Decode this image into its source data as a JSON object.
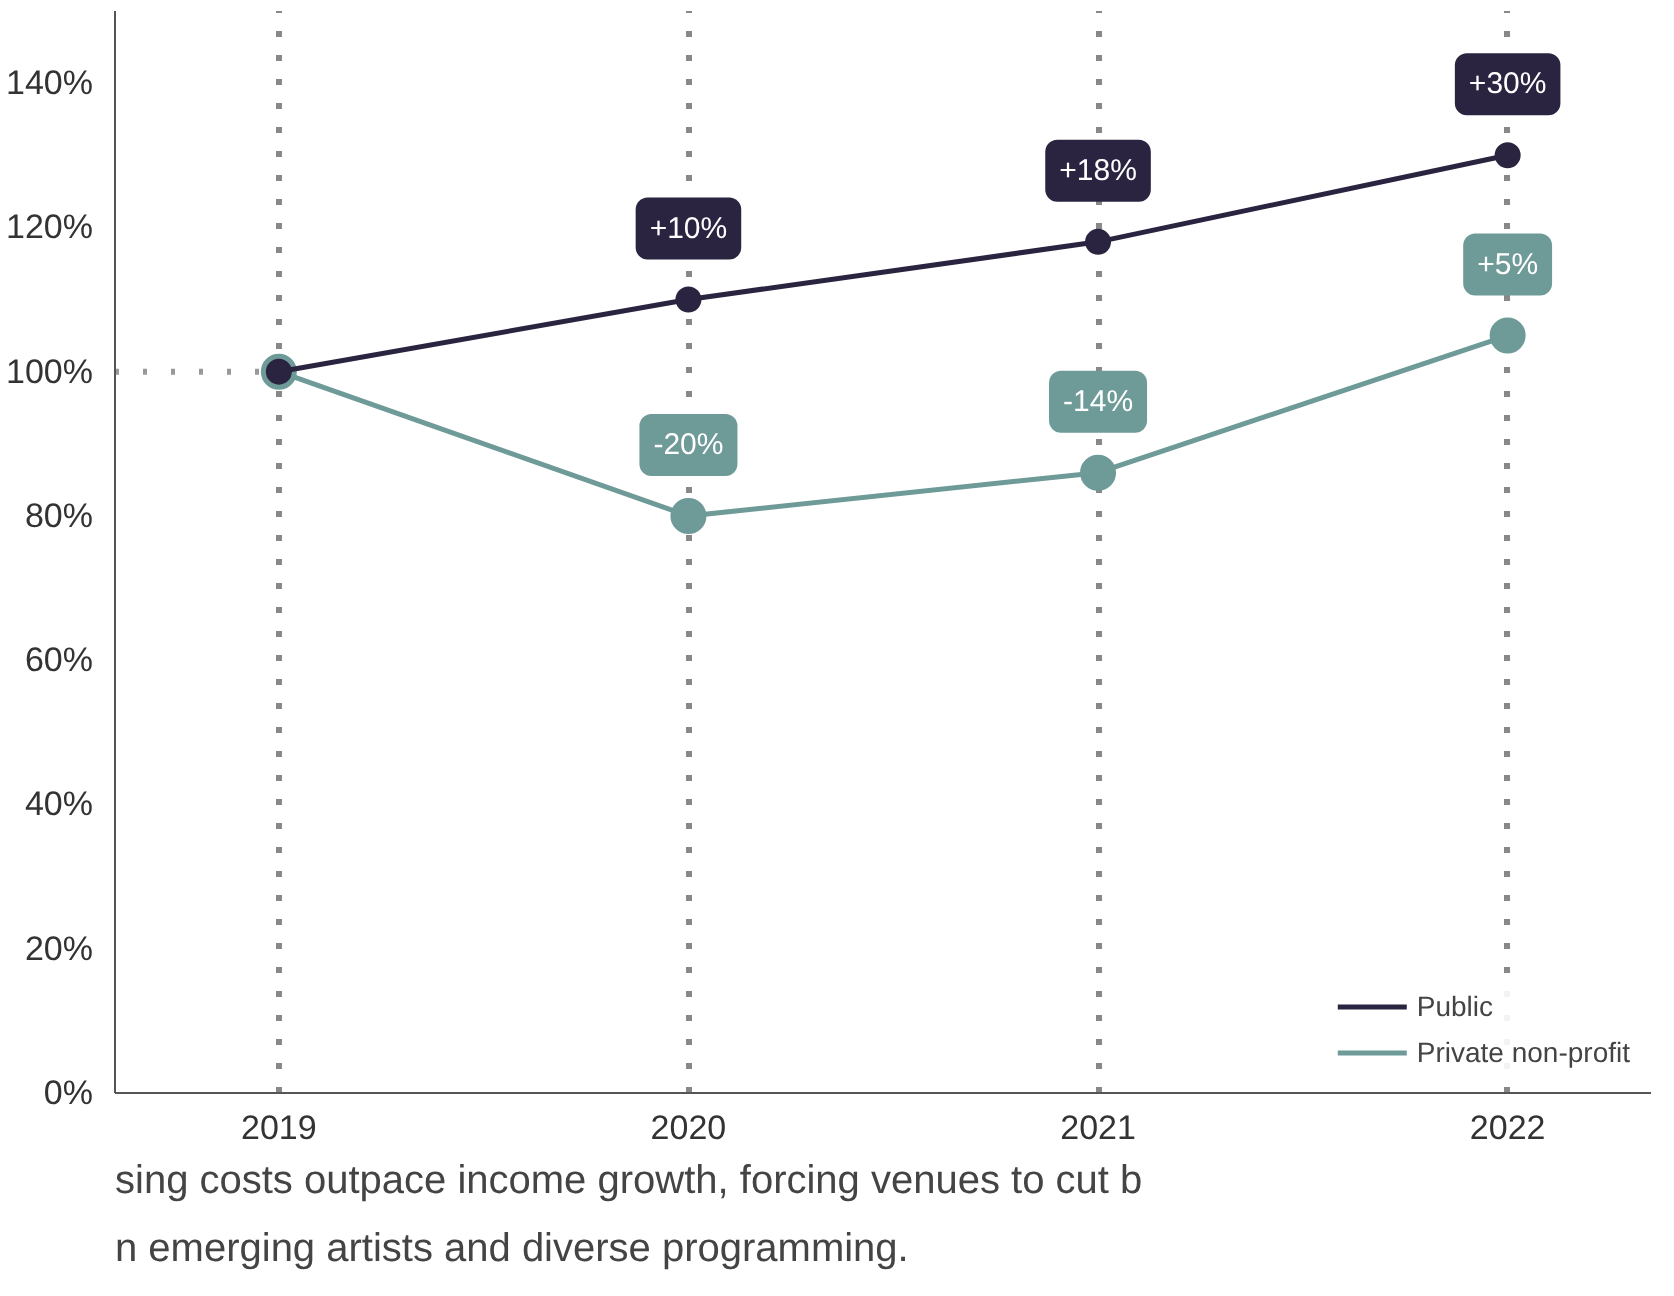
{
  "chart_data": {
    "type": "line",
    "x": [
      2019,
      2020,
      2021,
      2022
    ],
    "series": [
      {
        "name": "Public",
        "color": "#2a2440",
        "values": [
          100,
          110,
          118,
          130
        ]
      },
      {
        "name": "Private non-profit",
        "color": "#6e9a98",
        "values": [
          100,
          80,
          86,
          105
        ]
      }
    ],
    "xlim": [
      2018.6,
      2022.35
    ],
    "xticks": [
      2019,
      2020,
      2021,
      2022
    ],
    "ylim": [
      0,
      150
    ],
    "yticks": [
      {
        "value": 0,
        "label": "0%"
      },
      {
        "value": 20,
        "label": "20%"
      },
      {
        "value": 40,
        "label": "40%"
      },
      {
        "value": 60,
        "label": "60%"
      },
      {
        "value": 80,
        "label": "80%"
      },
      {
        "value": 100,
        "label": "100%"
      },
      {
        "value": 120,
        "label": "120%"
      },
      {
        "value": 140,
        "label": "140%"
      }
    ],
    "ref_lines": [
      {
        "axis": "y",
        "value": 100,
        "color": "#999999",
        "line_style": "dotted"
      }
    ],
    "grid": "x",
    "legend": "bottom right",
    "marker": "circle",
    "line_style": "solid",
    "annotations": [
      {
        "text": "+10%",
        "x": 2020,
        "y": 110
      },
      {
        "text": "+18%",
        "x": 2021,
        "y": 118
      },
      {
        "text": "+30%",
        "x": 2022,
        "y": 130
      },
      {
        "text": "-20%",
        "x": 2020,
        "y": 80
      },
      {
        "text": "-14%",
        "x": 2021,
        "y": 86
      },
      {
        "text": "+5%",
        "x": 2022,
        "y": 105
      },
      "sing costs outpace income growth, forcing venues to cut b",
      "n emerging artists and diverse programming."
    ]
  }
}
